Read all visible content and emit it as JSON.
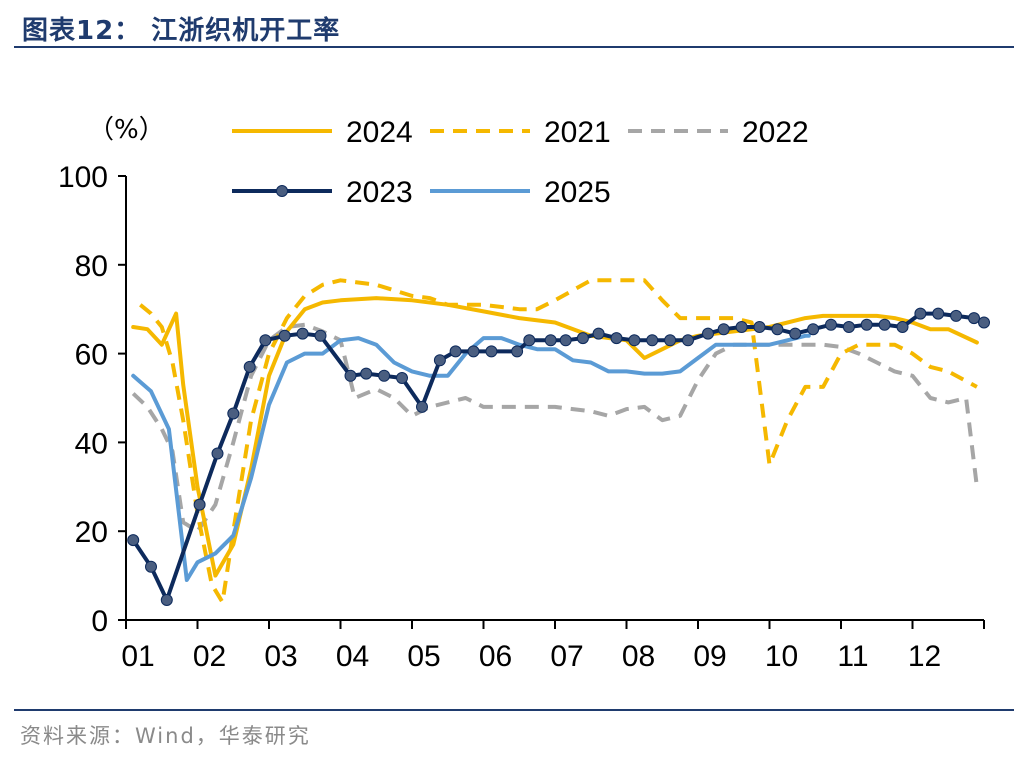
{
  "header": {
    "title": "图表12：  江浙织机开工率"
  },
  "footer": {
    "source": "资料来源：Wind，华泰研究"
  },
  "colors": {
    "2024": "#f5b800",
    "2021": "#f5b800",
    "2022": "#a6a6a6",
    "2023": "#0d2a5c",
    "2025": "#5b9bd5",
    "rule": "#1f3b6e"
  },
  "chart_data": {
    "type": "line",
    "unit_label": "（%）",
    "ylim": [
      0,
      100
    ],
    "yticks": [
      "0",
      "20",
      "40",
      "60",
      "80",
      "100"
    ],
    "xlim": [
      1,
      13
    ],
    "xticks": [
      "01",
      "02",
      "03",
      "04",
      "05",
      "06",
      "07",
      "08",
      "09",
      "10",
      "11",
      "12"
    ],
    "legend_position": "top",
    "grid": false,
    "series": [
      {
        "name": "2024",
        "style": "solid",
        "x": [
          1.1,
          1.3,
          1.5,
          1.7,
          1.8,
          2.0,
          2.25,
          2.5,
          2.75,
          3.0,
          3.25,
          3.5,
          3.75,
          4.0,
          4.5,
          5.0,
          5.5,
          6.0,
          6.5,
          7.0,
          7.5,
          8.0,
          8.25,
          8.5,
          8.75,
          9.0,
          9.5,
          10.0,
          10.5,
          10.75,
          11.0,
          11.5,
          11.75,
          12.0,
          12.25,
          12.5,
          12.9
        ],
        "y": [
          66,
          65.5,
          62,
          69,
          53,
          30,
          10,
          17,
          34,
          55,
          65,
          70,
          71.5,
          72,
          72.5,
          72,
          71,
          69.5,
          68,
          67,
          64,
          63,
          59,
          61,
          63,
          64,
          65,
          66,
          68,
          68.5,
          68.5,
          68.5,
          68,
          67,
          65.5,
          65.5,
          62.5
        ]
      },
      {
        "name": "2021",
        "style": "dashed",
        "x": [
          1.2,
          1.35,
          1.5,
          1.65,
          1.8,
          2.0,
          2.2,
          2.35,
          2.5,
          2.75,
          3.0,
          3.25,
          3.5,
          3.75,
          4.0,
          4.5,
          5.0,
          5.25,
          5.5,
          6.0,
          6.5,
          6.75,
          7.0,
          7.5,
          8.0,
          8.25,
          8.5,
          8.75,
          9.0,
          9.5,
          9.75,
          10.0,
          10.25,
          10.5,
          10.75,
          11.0,
          11.25,
          11.5,
          11.75,
          12.0,
          12.25,
          12.5,
          12.9
        ],
        "y": [
          71,
          69,
          66,
          58,
          45,
          24,
          8,
          4,
          20,
          45,
          60,
          68,
          73,
          75.5,
          76.5,
          75.5,
          73,
          72.5,
          71,
          71,
          70,
          70,
          72,
          76.5,
          76.5,
          76.5,
          72,
          68,
          68,
          68,
          67,
          35,
          45,
          52.5,
          52.5,
          60,
          62,
          62,
          62,
          60,
          57,
          56,
          52.5
        ]
      },
      {
        "name": "2022",
        "style": "dashed",
        "x": [
          1.1,
          1.3,
          1.5,
          1.65,
          1.8,
          2.0,
          2.25,
          2.5,
          2.75,
          3.0,
          3.25,
          3.5,
          3.75,
          4.0,
          4.2,
          4.5,
          4.75,
          5.0,
          5.25,
          5.5,
          5.75,
          6.0,
          6.5,
          7.0,
          7.5,
          7.75,
          8.0,
          8.25,
          8.5,
          8.75,
          9.0,
          9.25,
          9.5,
          9.75,
          10.0,
          10.5,
          10.75,
          11.0,
          11.25,
          11.5,
          11.75,
          12.0,
          12.25,
          12.5,
          12.75,
          12.9
        ],
        "y": [
          51,
          48,
          43,
          38,
          22,
          20,
          26,
          40,
          55,
          63,
          66,
          66.5,
          65,
          63,
          50,
          52,
          50,
          46,
          48,
          49,
          50,
          48,
          48,
          48,
          47,
          46,
          47.5,
          48,
          45,
          46,
          54,
          60,
          62,
          62,
          62,
          62,
          62,
          61.5,
          60,
          58,
          56,
          55,
          50,
          49,
          50,
          30
        ]
      },
      {
        "name": "2023",
        "style": "markers",
        "x": [
          1.1,
          1.35,
          1.57,
          2.03,
          2.28,
          2.5,
          2.73,
          2.95,
          3.22,
          3.47,
          3.72,
          4.14,
          4.36,
          4.61,
          4.86,
          5.14,
          5.39,
          5.61,
          5.86,
          6.11,
          6.47,
          6.64,
          6.94,
          7.15,
          7.39,
          7.61,
          7.86,
          8.11,
          8.36,
          8.61,
          8.86,
          9.14,
          9.36,
          9.61,
          9.86,
          10.11,
          10.36,
          10.61,
          10.86,
          11.11,
          11.36,
          11.61,
          11.86,
          12.11,
          12.36,
          12.61,
          12.86,
          13.0
        ],
        "y": [
          18,
          12,
          4.5,
          26,
          37.5,
          46.5,
          57,
          63,
          64,
          64.5,
          64,
          55,
          55.5,
          55,
          54.5,
          48,
          58.5,
          60.5,
          60.5,
          60.5,
          60.5,
          63,
          63,
          63,
          63.5,
          64.5,
          63.5,
          63,
          63,
          63,
          63,
          64.5,
          65.5,
          66,
          66,
          65.5,
          64.5,
          65.5,
          66.5,
          66,
          66.5,
          66.5,
          66,
          69,
          69,
          68.5,
          68,
          67
        ]
      },
      {
        "name": "2025",
        "style": "solid",
        "x": [
          1.1,
          1.35,
          1.6,
          1.85,
          2.0,
          2.25,
          2.5,
          2.75,
          3.0,
          3.25,
          3.5,
          3.75,
          4.0,
          4.25,
          4.5,
          4.75,
          5.0,
          5.25,
          5.5,
          5.75,
          6.0,
          6.25,
          6.5,
          6.75,
          7.0,
          7.25,
          7.5,
          7.75,
          8.0,
          8.25,
          8.5,
          8.75,
          9.0,
          9.25,
          9.5,
          9.75,
          10.0,
          10.25,
          10.5,
          10.55
        ],
        "y": [
          55,
          51.5,
          43,
          9,
          13,
          15,
          19,
          32,
          48.5,
          58,
          60,
          60,
          63,
          63.5,
          62,
          58,
          56,
          55,
          55,
          60,
          63.5,
          63.5,
          62,
          61,
          61,
          58.5,
          58,
          56,
          56,
          55.5,
          55.5,
          56,
          59,
          62,
          62,
          62,
          62,
          63,
          64,
          64
        ]
      }
    ]
  }
}
